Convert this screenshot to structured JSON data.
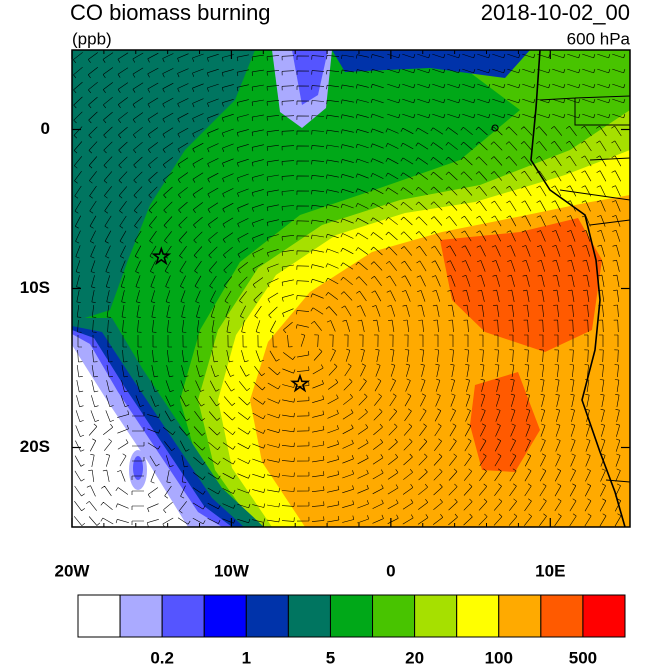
{
  "header": {
    "title": "CO biomass burning",
    "units": "(ppb)",
    "date": "2018-10-02_00",
    "level": "600 hPa"
  },
  "map": {
    "xlim": [
      -20,
      15
    ],
    "ylim": [
      -25,
      5
    ],
    "xticks": [
      {
        "value": -20,
        "label": "20W"
      },
      {
        "value": -10,
        "label": "10W"
      },
      0,
      {
        "value": 10,
        "label": "10E"
      }
    ],
    "yticks": [
      {
        "value": -20,
        "label": "20S"
      },
      {
        "value": -10,
        "label": "10S"
      },
      0
    ],
    "markers": [
      {
        "lon": -14.4,
        "lat": -8
      },
      {
        "lon": -5.7,
        "lat": -16
      }
    ]
  },
  "colorbar": {
    "colors": [
      "#ffffff",
      "#aaaaff",
      "#5555ff",
      "#0000ff",
      "#0033aa",
      "#007560",
      "#00a818",
      "#48c400",
      "#a6e000",
      "#ffff00",
      "#ffaa00",
      "#ff5a00",
      "#ff0000"
    ],
    "labels": [
      0.2,
      1,
      5,
      20,
      100,
      500
    ]
  }
}
